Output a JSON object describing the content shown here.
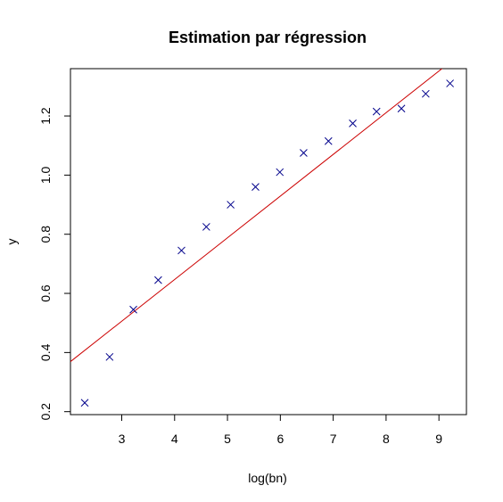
{
  "chart_data": {
    "type": "scatter",
    "title": "Estimation par régression",
    "xlabel": "log(bn)",
    "ylabel": "y",
    "xlim": [
      2.03,
      9.52
    ],
    "ylim": [
      0.19,
      1.36
    ],
    "x_ticks": [
      3,
      4,
      5,
      6,
      7,
      8,
      9
    ],
    "y_ticks": [
      0.2,
      0.4,
      0.6,
      0.8,
      1.0,
      1.2
    ],
    "x_tick_labels": [
      "3",
      "4",
      "5",
      "6",
      "7",
      "8",
      "9"
    ],
    "y_tick_labels": [
      "0.2",
      "0.4",
      "0.6",
      "0.8",
      "1.0",
      "1.2"
    ],
    "grid": false,
    "series": [
      {
        "type": "scatter",
        "marker": "x",
        "color": "#00008B",
        "x": [
          2.3,
          2.77,
          3.22,
          3.69,
          4.13,
          4.6,
          5.06,
          5.53,
          5.99,
          6.44,
          6.91,
          7.37,
          7.82,
          8.29,
          8.75,
          9.21
        ],
        "y": [
          0.23,
          0.385,
          0.545,
          0.645,
          0.745,
          0.825,
          0.9,
          0.96,
          1.01,
          1.075,
          1.115,
          1.175,
          1.215,
          1.225,
          1.275,
          1.31
        ]
      },
      {
        "type": "line",
        "color": "#CC0000",
        "intercept": 0.083,
        "slope": 0.141
      }
    ]
  }
}
